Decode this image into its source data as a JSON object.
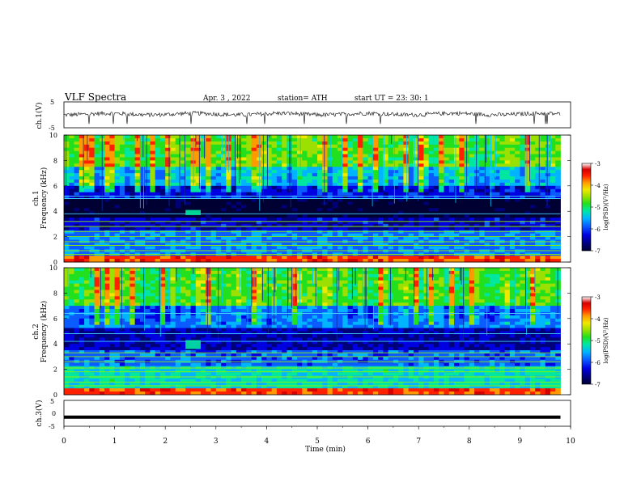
{
  "header": {
    "title": "VLF  Spectra",
    "date": "Apr. 3  , 2022",
    "station": "station= ATH",
    "start": "start  UT  =   23: 30: 1"
  },
  "colorbar": {
    "label": "log(PSD)(V²/Hz)",
    "ticks": [
      "-3",
      "-4",
      "-5",
      "-6",
      "-7"
    ],
    "colors": [
      "#000033",
      "#00007a",
      "#0000e0",
      "#0b5cff",
      "#00b4ff",
      "#00e8a0",
      "#22e01e",
      "#9be000",
      "#f0e800",
      "#ff9a00",
      "#ff2000",
      "#d40000",
      "#ffffff"
    ]
  },
  "chart_data": [
    {
      "type": "line",
      "name": "ch1-waveform",
      "ylabel": "ch.1(V)",
      "ylim": [
        -5,
        5
      ],
      "yticks": [
        "5",
        "-5"
      ],
      "x_range_min": [
        0,
        9.8
      ],
      "baseline_v": 0.3,
      "noise_amplitude_v": 0.8,
      "spikes_v": -3.5
    },
    {
      "type": "heatmap",
      "name": "ch1-spectrogram",
      "ylabel": "ch.1\nFrequency  (kHz)",
      "ylim_khz": [
        0,
        10
      ],
      "yticks": [
        "0",
        "2",
        "4",
        "6",
        "8",
        "10"
      ],
      "xlim_min": [
        0,
        9.8
      ],
      "zlim_log_psd": [
        -7,
        -3
      ],
      "bands_khz": [
        {
          "f": [
            0,
            0.4
          ],
          "log_psd": -3.8
        },
        {
          "f": [
            0.4,
            2.5
          ],
          "log_psd": -5.8
        },
        {
          "f": [
            2.5,
            3.5
          ],
          "log_psd": -6.3
        },
        {
          "f": [
            3.5,
            5.0
          ],
          "log_psd": -6.9
        },
        {
          "f": [
            5.0,
            6.0
          ],
          "log_psd": -6.2
        },
        {
          "f": [
            6.0,
            7.5
          ],
          "log_psd": -5.6
        },
        {
          "f": [
            7.5,
            10
          ],
          "log_psd": -4.9
        }
      ],
      "lines_khz": [
        0.6,
        0.9,
        1.3,
        1.6,
        2.0,
        2.4,
        2.8,
        3.2,
        3.8,
        5.0,
        5.2
      ],
      "event": {
        "t_min": [
          2.4,
          2.7
        ],
        "f_khz": [
          3.7,
          4.1
        ],
        "log_psd": -5.3
      }
    },
    {
      "type": "heatmap",
      "name": "ch2-spectrogram",
      "ylabel": "ch.2\nFrequency  (kHz)",
      "ylim_khz": [
        0,
        10
      ],
      "yticks": [
        "0",
        "2",
        "4",
        "6",
        "8",
        "10"
      ],
      "xlim_min": [
        0,
        9.8
      ],
      "zlim_log_psd": [
        -7,
        -3
      ],
      "bands_khz": [
        {
          "f": [
            0,
            0.4
          ],
          "log_psd": -3.8
        },
        {
          "f": [
            0.4,
            2.2
          ],
          "log_psd": -5.4
        },
        {
          "f": [
            2.2,
            3.6
          ],
          "log_psd": -5.9
        },
        {
          "f": [
            3.6,
            5.2
          ],
          "log_psd": -6.4
        },
        {
          "f": [
            5.2,
            7.0
          ],
          "log_psd": -5.8
        },
        {
          "f": [
            7.0,
            10
          ],
          "log_psd": -4.9
        }
      ],
      "lines_khz": [
        0.7,
        1.0,
        1.4,
        1.8,
        2.1,
        2.6,
        3.0,
        3.3,
        4.2,
        4.8,
        6.4
      ],
      "event": {
        "t_min": [
          2.4,
          2.7
        ],
        "f_khz": [
          3.6,
          4.3
        ],
        "log_psd": -5.3
      }
    },
    {
      "type": "line",
      "name": "ch3-waveform",
      "ylabel": "ch.3(V)",
      "xlabel": "Time  (min)",
      "ylim": [
        -5,
        5
      ],
      "yticks": [
        "5",
        "0",
        "-5"
      ],
      "xlim": [
        0,
        10
      ],
      "xticks": [
        "0",
        "1",
        "2",
        "3",
        "4",
        "5",
        "6",
        "7",
        "8",
        "9",
        "10"
      ],
      "x_range_min": [
        0,
        9.8
      ],
      "value_v": -1.5
    }
  ]
}
